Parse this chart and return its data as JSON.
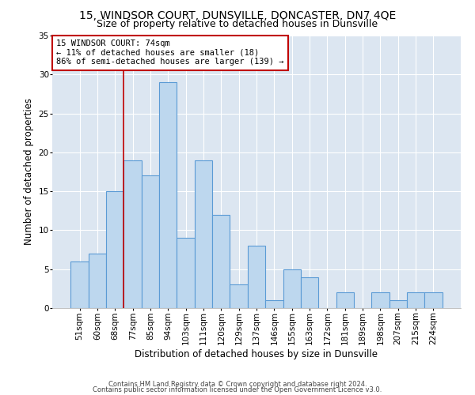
{
  "title": "15, WINDSOR COURT, DUNSVILLE, DONCASTER, DN7 4QE",
  "subtitle": "Size of property relative to detached houses in Dunsville",
  "xlabel": "Distribution of detached houses by size in Dunsville",
  "ylabel": "Number of detached properties",
  "categories": [
    "51sqm",
    "60sqm",
    "68sqm",
    "77sqm",
    "85sqm",
    "94sqm",
    "103sqm",
    "111sqm",
    "120sqm",
    "129sqm",
    "137sqm",
    "146sqm",
    "155sqm",
    "163sqm",
    "172sqm",
    "181sqm",
    "189sqm",
    "198sqm",
    "207sqm",
    "215sqm",
    "224sqm"
  ],
  "values": [
    6,
    7,
    15,
    19,
    17,
    29,
    9,
    19,
    12,
    3,
    8,
    1,
    5,
    4,
    0,
    2,
    0,
    2,
    1,
    2,
    2
  ],
  "bar_color": "#bdd7ee",
  "bar_edge_color": "#5b9bd5",
  "vline_x": 2.5,
  "vline_color": "#c00000",
  "annotation_text": "15 WINDSOR COURT: 74sqm\n← 11% of detached houses are smaller (18)\n86% of semi-detached houses are larger (139) →",
  "annotation_box_color": "white",
  "annotation_box_edge_color": "#c00000",
  "ylim": [
    0,
    35
  ],
  "yticks": [
    0,
    5,
    10,
    15,
    20,
    25,
    30,
    35
  ],
  "footer1": "Contains HM Land Registry data © Crown copyright and database right 2024.",
  "footer2": "Contains public sector information licensed under the Open Government Licence v3.0.",
  "bg_color": "white",
  "plot_bg_color": "#dce6f1",
  "title_fontsize": 10,
  "subtitle_fontsize": 9,
  "tick_fontsize": 7.5,
  "ylabel_fontsize": 8.5,
  "xlabel_fontsize": 8.5,
  "annotation_fontsize": 7.5,
  "footer_fontsize": 6
}
